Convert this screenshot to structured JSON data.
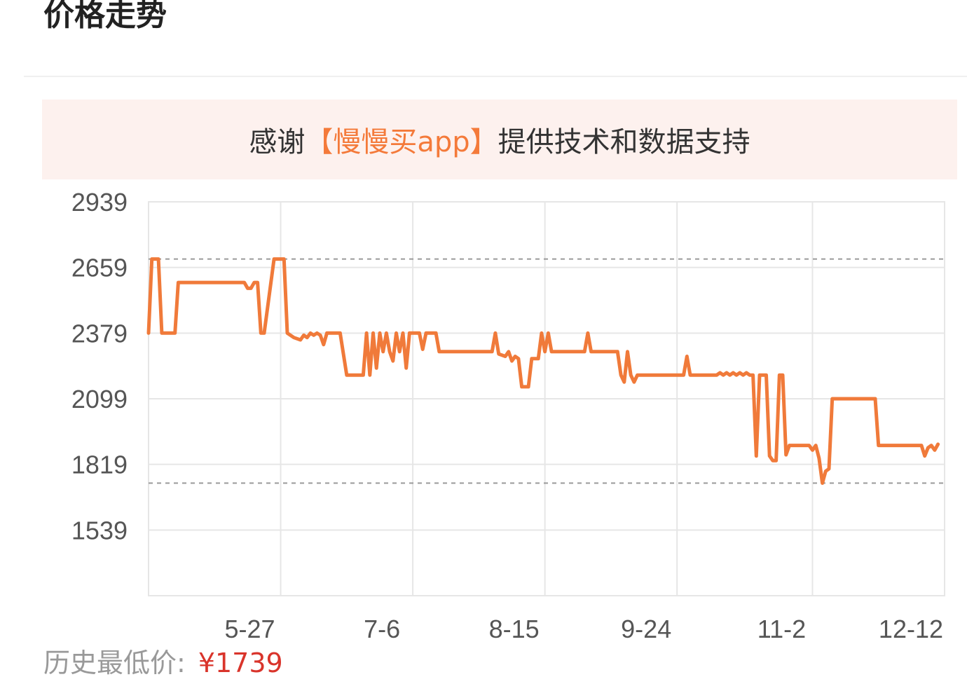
{
  "header": {
    "title": "价格走势"
  },
  "banner": {
    "prefix": "感谢",
    "brand": "【慢慢买app】",
    "suffix": "提供技术和数据支持"
  },
  "lowest_price": {
    "label": "历史最低价:",
    "value": "¥1739"
  },
  "colors": {
    "line": "#f07a3a",
    "accent": "#f47a3a",
    "price_red": "#d9342b",
    "grid": "#e6e6e6",
    "banner_bg": "#fdf1ee"
  },
  "chart_data": {
    "type": "line",
    "y_ticks": [
      2939,
      2659,
      2379,
      2099,
      1819,
      1539
    ],
    "ylim": [
      1259,
      2939
    ],
    "x_ticks": [
      {
        "label": "5-27",
        "day": 0
      },
      {
        "label": "7-6",
        "day": 40
      },
      {
        "label": "8-15",
        "day": 80
      },
      {
        "label": "9-24",
        "day": 120
      },
      {
        "label": "11-2",
        "day": 161
      },
      {
        "label": "12-12",
        "day": 201
      }
    ],
    "xlim": [
      -40,
      201
    ],
    "reference_lines": [
      2695,
      1739
    ],
    "series": [
      {
        "points": [
          [
            -40,
            2379
          ],
          [
            -39,
            2695
          ],
          [
            -37,
            2695
          ],
          [
            -36,
            2379
          ],
          [
            -32,
            2379
          ],
          [
            -31,
            2595
          ],
          [
            -11,
            2595
          ],
          [
            -10,
            2570
          ],
          [
            -9,
            2570
          ],
          [
            -8,
            2595
          ],
          [
            -7,
            2595
          ],
          [
            -6,
            2379
          ],
          [
            -5,
            2379
          ],
          [
            -2,
            2695
          ],
          [
            1,
            2695
          ],
          [
            2,
            2379
          ],
          [
            4,
            2360
          ],
          [
            6,
            2350
          ],
          [
            7,
            2370
          ],
          [
            8,
            2360
          ],
          [
            9,
            2379
          ],
          [
            10,
            2370
          ],
          [
            11,
            2379
          ],
          [
            12,
            2370
          ],
          [
            13,
            2330
          ],
          [
            14,
            2379
          ],
          [
            18,
            2379
          ],
          [
            20,
            2200
          ],
          [
            25,
            2200
          ],
          [
            26,
            2379
          ],
          [
            27,
            2200
          ],
          [
            28,
            2379
          ],
          [
            29,
            2230
          ],
          [
            30,
            2379
          ],
          [
            31,
            2300
          ],
          [
            32,
            2379
          ],
          [
            33,
            2300
          ],
          [
            34,
            2260
          ],
          [
            35,
            2379
          ],
          [
            36,
            2300
          ],
          [
            37,
            2379
          ],
          [
            38,
            2230
          ],
          [
            39,
            2379
          ],
          [
            42,
            2379
          ],
          [
            43,
            2310
          ],
          [
            44,
            2379
          ],
          [
            47,
            2379
          ],
          [
            48,
            2300
          ],
          [
            64,
            2300
          ],
          [
            65,
            2379
          ],
          [
            66,
            2290
          ],
          [
            68,
            2280
          ],
          [
            69,
            2300
          ],
          [
            70,
            2260
          ],
          [
            71,
            2280
          ],
          [
            72,
            2270
          ],
          [
            73,
            2150
          ],
          [
            75,
            2150
          ],
          [
            76,
            2270
          ],
          [
            78,
            2270
          ],
          [
            79,
            2379
          ],
          [
            80,
            2300
          ],
          [
            81,
            2379
          ],
          [
            82,
            2300
          ],
          [
            92,
            2300
          ],
          [
            93,
            2379
          ],
          [
            94,
            2300
          ],
          [
            102,
            2300
          ],
          [
            103,
            2200
          ],
          [
            104,
            2170
          ],
          [
            105,
            2300
          ],
          [
            106,
            2200
          ],
          [
            107,
            2170
          ],
          [
            108,
            2200
          ],
          [
            122,
            2200
          ],
          [
            123,
            2280
          ],
          [
            124,
            2200
          ],
          [
            132,
            2200
          ],
          [
            133,
            2210
          ],
          [
            134,
            2200
          ],
          [
            135,
            2210
          ],
          [
            136,
            2200
          ],
          [
            137,
            2210
          ],
          [
            138,
            2200
          ],
          [
            139,
            2210
          ],
          [
            140,
            2200
          ],
          [
            141,
            2210
          ],
          [
            142,
            2200
          ],
          [
            143,
            2200
          ],
          [
            144,
            1855
          ],
          [
            145,
            2200
          ],
          [
            147,
            2200
          ],
          [
            148,
            1855
          ],
          [
            149,
            1835
          ],
          [
            150,
            1835
          ],
          [
            151,
            2200
          ],
          [
            152,
            2200
          ],
          [
            153,
            1860
          ],
          [
            154,
            1900
          ],
          [
            160,
            1900
          ],
          [
            161,
            1880
          ],
          [
            162,
            1900
          ],
          [
            163,
            1845
          ],
          [
            164,
            1739
          ],
          [
            165,
            1790
          ],
          [
            166,
            1800
          ],
          [
            167,
            2099
          ],
          [
            180,
            2099
          ],
          [
            181,
            1900
          ],
          [
            194,
            1900
          ],
          [
            195,
            1855
          ],
          [
            196,
            1890
          ],
          [
            197,
            1900
          ],
          [
            198,
            1880
          ],
          [
            199,
            1905
          ]
        ]
      }
    ]
  }
}
